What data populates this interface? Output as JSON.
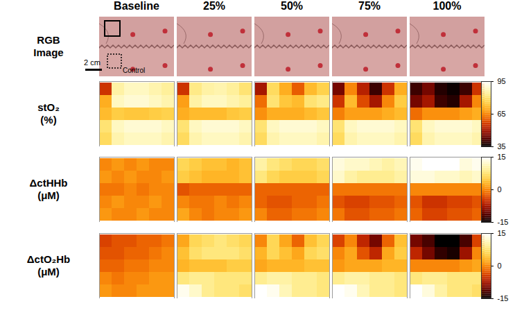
{
  "columns": [
    "Baseline",
    "25%",
    "50%",
    "75%",
    "100%"
  ],
  "rgb_row": {
    "title": [
      "RGB",
      "Image"
    ],
    "scale_bar": "2 cm",
    "roi_label": "Control"
  },
  "chart_data": [
    {
      "type": "heatmap",
      "title": [
        "stO₂",
        "(%)"
      ],
      "colorbar": {
        "range": [
          35,
          95
        ],
        "ticks": [
          35,
          65,
          95
        ]
      },
      "panels": [
        [
          [
            55,
            85,
            88,
            88,
            86,
            84
          ],
          [
            70,
            88,
            90,
            90,
            88,
            86
          ],
          [
            72,
            75,
            74,
            74,
            75,
            76
          ],
          [
            80,
            88,
            90,
            90,
            90,
            88
          ],
          [
            78,
            86,
            88,
            88,
            88,
            86
          ]
        ],
        [
          [
            55,
            82,
            85,
            86,
            84,
            80
          ],
          [
            68,
            85,
            88,
            88,
            86,
            84
          ],
          [
            70,
            72,
            72,
            72,
            74,
            75
          ],
          [
            80,
            88,
            90,
            90,
            90,
            88
          ],
          [
            78,
            86,
            88,
            88,
            88,
            86
          ]
        ],
        [
          [
            50,
            78,
            70,
            60,
            72,
            76
          ],
          [
            62,
            80,
            74,
            72,
            80,
            82
          ],
          [
            66,
            70,
            70,
            70,
            72,
            74
          ],
          [
            80,
            88,
            90,
            90,
            90,
            88
          ],
          [
            78,
            86,
            88,
            88,
            88,
            86
          ]
        ],
        [
          [
            45,
            65,
            52,
            40,
            55,
            70
          ],
          [
            55,
            72,
            58,
            50,
            65,
            75
          ],
          [
            64,
            68,
            68,
            68,
            70,
            72
          ],
          [
            80,
            88,
            90,
            90,
            90,
            88
          ],
          [
            78,
            86,
            88,
            88,
            88,
            86
          ]
        ],
        [
          [
            40,
            45,
            38,
            36,
            40,
            55
          ],
          [
            45,
            50,
            40,
            38,
            50,
            65
          ],
          [
            62,
            66,
            66,
            66,
            68,
            70
          ],
          [
            80,
            88,
            90,
            90,
            90,
            88
          ],
          [
            78,
            86,
            88,
            88,
            88,
            86
          ]
        ]
      ]
    },
    {
      "type": "heatmap",
      "title": [
        "ΔctHHb",
        "(μM)"
      ],
      "colorbar": {
        "range": [
          -15,
          15
        ],
        "ticks": [
          -15,
          0,
          15
        ]
      },
      "panels": [
        [
          [
            0,
            1,
            0,
            1,
            0,
            0
          ],
          [
            1,
            0,
            1,
            0,
            0,
            1
          ],
          [
            -1,
            -1,
            0,
            -1,
            0,
            0
          ],
          [
            0,
            1,
            0,
            0,
            1,
            0
          ],
          [
            1,
            0,
            0,
            1,
            0,
            0
          ]
        ],
        [
          [
            6,
            5,
            4,
            4,
            3,
            4
          ],
          [
            5,
            4,
            3,
            3,
            3,
            4
          ],
          [
            -3,
            -2,
            -2,
            -2,
            -2,
            -2
          ],
          [
            0,
            -1,
            -1,
            0,
            -1,
            0
          ],
          [
            2,
            0,
            -1,
            0,
            0,
            1
          ]
        ],
        [
          [
            10,
            8,
            7,
            6,
            6,
            7
          ],
          [
            8,
            6,
            5,
            5,
            5,
            6
          ],
          [
            -2,
            -2,
            -2,
            -2,
            -2,
            -2
          ],
          [
            -2,
            -3,
            -3,
            -2,
            -2,
            -1
          ],
          [
            0,
            -2,
            -2,
            -1,
            -1,
            0
          ]
        ],
        [
          [
            13,
            12,
            12,
            11,
            10,
            11
          ],
          [
            12,
            10,
            9,
            9,
            9,
            10
          ],
          [
            -1,
            -1,
            -1,
            -1,
            -1,
            -1
          ],
          [
            -3,
            -4,
            -4,
            -3,
            -3,
            -2
          ],
          [
            -1,
            -3,
            -3,
            -2,
            -2,
            -1
          ]
        ],
        [
          [
            14,
            15,
            15,
            15,
            13,
            14
          ],
          [
            13,
            13,
            12,
            12,
            11,
            12
          ],
          [
            0,
            0,
            0,
            0,
            0,
            0
          ],
          [
            -3,
            -5,
            -5,
            -4,
            -4,
            -3
          ],
          [
            -2,
            -4,
            -4,
            -3,
            -3,
            -2
          ]
        ]
      ]
    },
    {
      "type": "heatmap",
      "title": [
        "ΔctO₂Hb",
        "(μM)"
      ],
      "colorbar": {
        "range": [
          -15,
          15
        ],
        "ticks": [
          -15,
          0,
          15
        ]
      },
      "panels": [
        [
          [
            -4,
            -3,
            -3,
            -2,
            -2,
            -1
          ],
          [
            -3,
            -3,
            -2,
            -2,
            -1,
            0
          ],
          [
            -2,
            -2,
            -1,
            -1,
            0,
            0
          ],
          [
            0,
            -1,
            0,
            0,
            1,
            1
          ],
          [
            1,
            0,
            0,
            1,
            1,
            1
          ]
        ],
        [
          [
            2,
            6,
            7,
            8,
            7,
            6
          ],
          [
            4,
            7,
            8,
            8,
            8,
            7
          ],
          [
            3,
            4,
            4,
            4,
            5,
            5
          ],
          [
            8,
            9,
            9,
            8,
            8,
            8
          ],
          [
            14,
            12,
            9,
            8,
            8,
            7
          ]
        ],
        [
          [
            0,
            6,
            2,
            -2,
            4,
            6
          ],
          [
            3,
            6,
            4,
            2,
            6,
            7
          ],
          [
            2,
            3,
            3,
            3,
            4,
            4
          ],
          [
            9,
            10,
            10,
            9,
            9,
            8
          ],
          [
            15,
            14,
            11,
            9,
            9,
            8
          ]
        ],
        [
          [
            -4,
            0,
            -6,
            -10,
            -2,
            4
          ],
          [
            0,
            2,
            -3,
            -6,
            2,
            5
          ],
          [
            1,
            2,
            2,
            2,
            3,
            3
          ],
          [
            9,
            10,
            10,
            9,
            9,
            8
          ],
          [
            15,
            14,
            11,
            9,
            9,
            8
          ]
        ],
        [
          [
            -10,
            -12,
            -15,
            -15,
            -12,
            -4
          ],
          [
            -6,
            -10,
            -13,
            -14,
            -8,
            0
          ],
          [
            0,
            0,
            0,
            0,
            1,
            2
          ],
          [
            8,
            9,
            9,
            8,
            8,
            8
          ],
          [
            15,
            13,
            10,
            8,
            8,
            7
          ]
        ]
      ]
    }
  ]
}
